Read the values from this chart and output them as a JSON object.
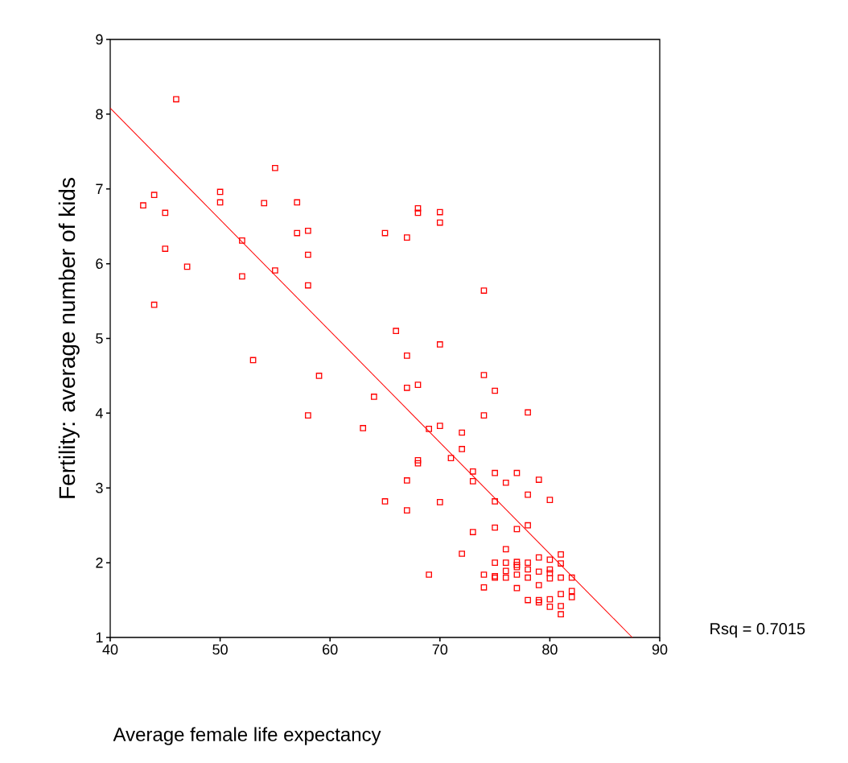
{
  "chart_data": {
    "type": "scatter",
    "xlabel": "Average female life expectancy",
    "ylabel": "Fertility: average number of kids",
    "xlim": [
      40,
      90
    ],
    "ylim": [
      1,
      9
    ],
    "xticks": [
      40,
      50,
      60,
      70,
      80,
      90
    ],
    "yticks": [
      1,
      2,
      3,
      4,
      5,
      6,
      7,
      8,
      9
    ],
    "grid": false,
    "marker": "square",
    "annotations": [
      "Rsq = 0.7015"
    ],
    "series": [
      {
        "color": "#ff0000",
        "x": [
          46,
          43,
          44,
          45,
          45,
          47,
          44,
          50,
          50,
          52,
          52,
          54,
          55,
          55,
          57,
          57,
          58,
          58,
          58,
          53,
          59,
          58,
          64,
          63,
          68,
          68,
          70,
          70,
          65,
          67,
          74,
          66,
          70,
          67,
          67,
          68,
          74,
          75,
          74,
          78,
          70,
          69,
          72,
          72,
          71,
          68,
          68,
          73,
          73,
          67,
          75,
          77,
          76,
          79,
          78,
          80,
          75,
          65,
          70,
          67,
          73,
          75,
          77,
          78,
          76,
          72,
          69,
          74,
          74,
          75,
          76,
          77,
          77,
          77,
          78,
          79,
          80,
          81,
          81,
          75,
          75,
          76,
          76,
          77,
          78,
          78,
          79,
          80,
          80,
          80,
          81,
          82,
          77,
          79,
          81,
          82,
          82,
          78,
          79,
          79,
          80,
          80,
          81,
          81
        ],
        "values": [
          8.2,
          6.78,
          6.92,
          6.68,
          6.2,
          5.96,
          5.45,
          6.96,
          6.82,
          6.31,
          5.83,
          6.81,
          7.28,
          5.91,
          6.82,
          6.41,
          6.44,
          6.12,
          5.71,
          4.71,
          4.5,
          3.97,
          4.22,
          3.8,
          6.74,
          6.68,
          6.69,
          6.55,
          6.41,
          6.35,
          5.64,
          5.1,
          4.92,
          4.77,
          4.34,
          4.38,
          4.51,
          4.3,
          3.97,
          4.01,
          3.83,
          3.79,
          3.74,
          3.52,
          3.4,
          3.37,
          3.33,
          3.22,
          3.09,
          3.1,
          3.2,
          3.2,
          3.07,
          3.11,
          2.91,
          2.84,
          2.82,
          2.82,
          2.81,
          2.7,
          2.41,
          2.47,
          2.45,
          2.5,
          2.18,
          2.12,
          1.84,
          1.84,
          1.67,
          2.0,
          2.0,
          2.01,
          1.97,
          1.94,
          2.0,
          2.07,
          2.04,
          2.11,
          1.99,
          1.82,
          1.8,
          1.89,
          1.8,
          1.84,
          1.91,
          1.8,
          1.88,
          1.91,
          1.86,
          1.79,
          1.8,
          1.8,
          1.66,
          1.7,
          1.58,
          1.62,
          1.54,
          1.5,
          1.5,
          1.47,
          1.51,
          1.41,
          1.42,
          1.31
        ]
      },
      {
        "type": "line",
        "color": "#ff0000",
        "marker": "none",
        "x": [
          40,
          87.5
        ],
        "values": [
          8.08,
          1.0
        ]
      }
    ]
  }
}
